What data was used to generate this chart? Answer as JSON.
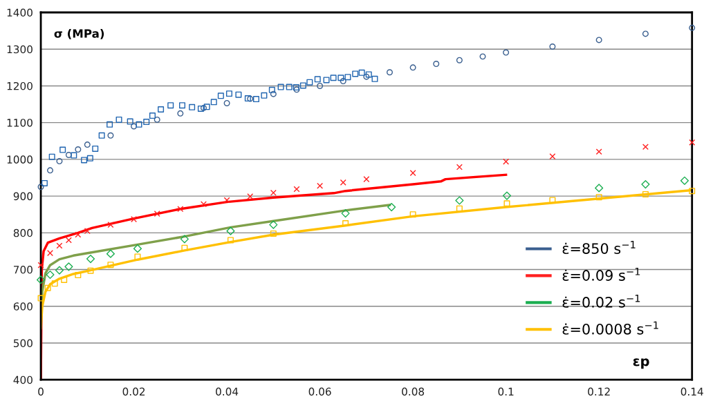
{
  "chart_data": {
    "type": "line",
    "xlabel": "εp",
    "ylabel": "σ (MPa)",
    "xlim": [
      0,
      0.14
    ],
    "xticks": [
      0,
      0.02,
      0.04,
      0.06,
      0.08,
      0.1,
      0.12,
      0.14
    ],
    "ylim": [
      400,
      1400
    ],
    "yticks": [
      400,
      500,
      600,
      700,
      800,
      900,
      1000,
      1100,
      1200,
      1300,
      1400
    ],
    "grid": "y",
    "legend": "bottom right",
    "series": [
      {
        "name": "ε̇=850 s$^{−1}$",
        "type": "scatter",
        "marker": "circle",
        "color": "#3a5f8f",
        "x": [
          0,
          0.002,
          0.004,
          0.006,
          0.008,
          0.01,
          0.015,
          0.02,
          0.025,
          0.03,
          0.035,
          0.04,
          0.045,
          0.05,
          0.055,
          0.06,
          0.065,
          0.07,
          0.075,
          0.08,
          0.085,
          0.09,
          0.095,
          0.1,
          0.11,
          0.12,
          0.13,
          0.14
        ],
        "values": [
          925,
          970,
          995,
          1012,
          1027,
          1040,
          1065,
          1090,
          1108,
          1125,
          1140,
          1153,
          1165,
          1178,
          1190,
          1200,
          1213,
          1225,
          1237,
          1250,
          1260,
          1270,
          1280,
          1291,
          1307,
          1325,
          1342,
          1358
        ]
      },
      {
        "type": "scatter",
        "marker": "square",
        "color": "#1f64b0",
        "x": [
          0.0008,
          0.0024,
          0.0047,
          0.0071,
          0.0093,
          0.0106,
          0.0117,
          0.0131,
          0.0148,
          0.0168,
          0.0192,
          0.0211,
          0.0227,
          0.024,
          0.0258,
          0.0279,
          0.0304,
          0.0325,
          0.0344,
          0.0357,
          0.0372,
          0.0387,
          0.0405,
          0.0425,
          0.0445,
          0.0463,
          0.048,
          0.0497,
          0.0516,
          0.0534,
          0.0549,
          0.0564,
          0.0578,
          0.0595,
          0.0614,
          0.0629,
          0.0645,
          0.066,
          0.0676,
          0.069,
          0.0705,
          0.0718
        ],
        "values": [
          935,
          1007,
          1026,
          1011,
          998,
          1003,
          1029,
          1065,
          1095,
          1108,
          1103,
          1095,
          1102,
          1119,
          1136,
          1147,
          1147,
          1142,
          1138,
          1143,
          1156,
          1173,
          1179,
          1176,
          1166,
          1164,
          1174,
          1189,
          1197,
          1197,
          1196,
          1201,
          1210,
          1218,
          1216,
          1222,
          1222,
          1224,
          1233,
          1236,
          1231,
          1219
        ]
      },
      {
        "name": "ε̇=0.09 s$^{−1}$",
        "type": "scatter",
        "marker": "cross",
        "color": "#ff2020",
        "x": [
          0,
          0.002,
          0.004,
          0.006,
          0.008,
          0.01,
          0.015,
          0.02,
          0.025,
          0.03,
          0.035,
          0.04,
          0.045,
          0.05,
          0.055,
          0.06,
          0.065,
          0.07,
          0.08,
          0.09,
          0.1,
          0.11,
          0.12,
          0.13,
          0.14
        ],
        "values": [
          712,
          745,
          765,
          780,
          795,
          805,
          822,
          837,
          852,
          865,
          878,
          889,
          899,
          909,
          919,
          928,
          937,
          946,
          963,
          979,
          994,
          1008,
          1021,
          1034,
          1046
        ]
      },
      {
        "color": "#ff0000",
        "x": [
          0,
          0.0002,
          0.0006,
          0.0015,
          0.004,
          0.008,
          0.011,
          0.02,
          0.03,
          0.04,
          0.05,
          0.063,
          0.0655,
          0.08,
          0.086,
          0.087,
          0.1
        ],
        "values": [
          400,
          700,
          750,
          773,
          785,
          800,
          813,
          839,
          865,
          884,
          896,
          908,
          914,
          932,
          940,
          946,
          958
        ]
      },
      {
        "name": "ε̇=0.02 s$^{−1}$",
        "type": "scatter",
        "marker": "diamond",
        "color": "#1aae50",
        "x": [
          0,
          0.002,
          0.004,
          0.006,
          0.0107,
          0.015,
          0.0208,
          0.0309,
          0.0408,
          0.05,
          0.0655,
          0.0754,
          0.09,
          0.1002,
          0.12,
          0.13,
          0.1384
        ],
        "values": [
          672,
          686,
          698,
          708,
          729,
          743,
          757,
          783,
          805,
          822,
          853,
          870,
          888,
          901,
          922,
          932,
          942
        ]
      },
      {
        "color": "#7fa04a",
        "x": [
          0,
          0.0003,
          0.001,
          0.002,
          0.004,
          0.007,
          0.0107,
          0.0208,
          0.0309,
          0.0408,
          0.05,
          0.0655,
          0.075
        ],
        "values": [
          560,
          640,
          690,
          712,
          728,
          738,
          746,
          768,
          790,
          815,
          832,
          861,
          876
        ]
      },
      {
        "name": "ε̇=0.0008 s$^{−1}$",
        "type": "scatter",
        "marker": "square",
        "color": "#ffc000",
        "x": [
          0,
          0.0015,
          0.003,
          0.005,
          0.008,
          0.0107,
          0.015,
          0.0208,
          0.0309,
          0.0408,
          0.05,
          0.0655,
          0.08,
          0.09,
          0.1002,
          0.11,
          0.12,
          0.13,
          0.14
        ],
        "values": [
          622,
          650,
          662,
          672,
          685,
          697,
          713,
          735,
          759,
          780,
          798,
          826,
          850,
          866,
          880,
          889,
          897,
          905,
          914
        ]
      },
      {
        "color": "#ffc000",
        "x": [
          0,
          0.0003,
          0.001,
          0.002,
          0.004,
          0.007,
          0.0107,
          0.0208,
          0.0309,
          0.0408,
          0.05,
          0.0655,
          0.08,
          0.1,
          0.12,
          0.14
        ],
        "values": [
          540,
          600,
          640,
          660,
          675,
          688,
          698,
          727,
          752,
          775,
          795,
          820,
          845,
          870,
          893,
          916
        ]
      }
    ]
  }
}
